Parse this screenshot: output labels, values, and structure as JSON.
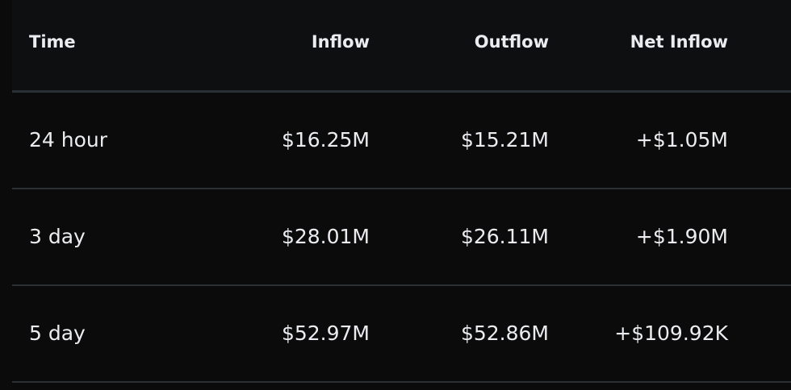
{
  "colors": {
    "positive": "#5fb48a",
    "background": "#0b0b0c",
    "header_background": "#0e0f11",
    "divider": "#2b2f36",
    "text": "#eaecef"
  },
  "table": {
    "headers": {
      "time": "Time",
      "inflow": "Inflow",
      "outflow": "Outflow",
      "net_inflow": "Net Inflow"
    },
    "rows": [
      {
        "time": "24 hour",
        "inflow": "$16.25M",
        "outflow": "$15.21M",
        "net_inflow": "+$1.05M"
      },
      {
        "time": "3 day",
        "inflow": "$28.01M",
        "outflow": "$26.11M",
        "net_inflow": "+$1.90M"
      },
      {
        "time": "5 day",
        "inflow": "$52.97M",
        "outflow": "$52.86M",
        "net_inflow": "+$109.92K"
      }
    ]
  }
}
